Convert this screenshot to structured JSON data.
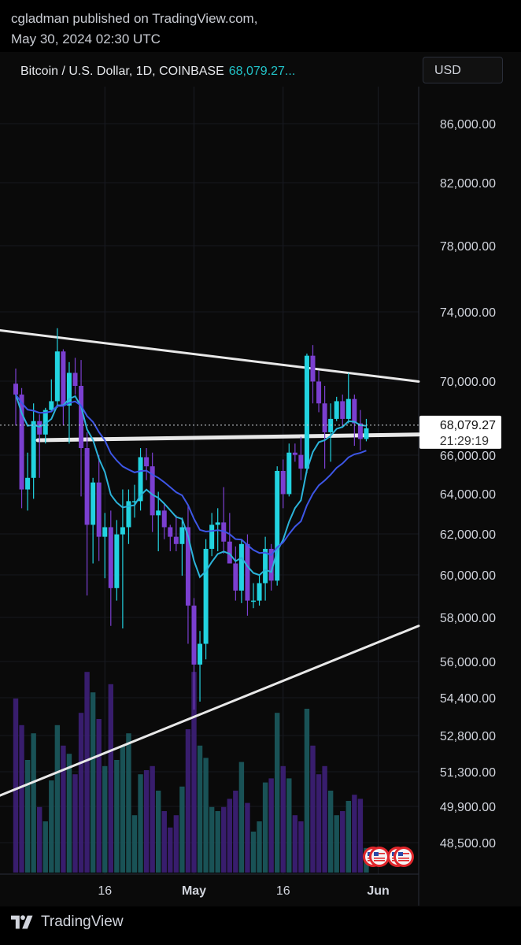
{
  "header": {
    "line1": "cgladman published on TradingView.com,",
    "line2": "May 30, 2024 02:30 UTC"
  },
  "symbol": {
    "title": "Bitcoin / U.S. Dollar, 1D, COINBASE",
    "price": "68,079.27..."
  },
  "currency_button": "USD",
  "footer": {
    "brand": "TradingView"
  },
  "colors": {
    "bull": "#22d3e0",
    "bear": "#7b3fd0",
    "ema_fast": "#2bb3d9",
    "ema_slow": "#3d56e6",
    "trendline": "#e8e8e8",
    "price_tag_bg": "#ffffff"
  },
  "chart_data": {
    "type": "candlestick",
    "price_axis": {
      "labels": [
        "86,000.00",
        "82,000.00",
        "78,000.00",
        "74,000.00",
        "70,000.00",
        "66,000.00",
        "64,000.00",
        "62,000.00",
        "60,000.00",
        "58,000.00",
        "56,000.00",
        "54,400.00",
        "52,800.00",
        "51,300.00",
        "49,900.00",
        "48,500.00"
      ],
      "scale": "log"
    },
    "x_axis": {
      "labels": [
        "16",
        "May",
        "16",
        "Jun"
      ]
    },
    "last_price_tag": {
      "price": "68,079.27",
      "countdown": "21:29:19"
    },
    "candles": [
      {
        "date": "2024-04-01",
        "o": 70100,
        "h": 70800,
        "l": 68200,
        "c": 69600
      },
      {
        "date": "2024-04-02",
        "o": 69600,
        "h": 69900,
        "l": 64600,
        "c": 65400
      },
      {
        "date": "2024-04-03",
        "o": 65400,
        "h": 67000,
        "l": 64500,
        "c": 65900
      },
      {
        "date": "2024-04-04",
        "o": 65900,
        "h": 69200,
        "l": 65000,
        "c": 68400
      },
      {
        "date": "2024-04-05",
        "o": 68400,
        "h": 68700,
        "l": 65900,
        "c": 67800
      },
      {
        "date": "2024-04-06",
        "o": 67800,
        "h": 69000,
        "l": 67400,
        "c": 68900
      },
      {
        "date": "2024-04-07",
        "o": 68900,
        "h": 70300,
        "l": 68800,
        "c": 69300
      },
      {
        "date": "2024-04-08",
        "o": 69300,
        "h": 72700,
        "l": 69000,
        "c": 71600
      },
      {
        "date": "2024-04-09",
        "o": 71600,
        "h": 71700,
        "l": 68200,
        "c": 69100
      },
      {
        "date": "2024-04-10",
        "o": 69100,
        "h": 71100,
        "l": 67400,
        "c": 70600
      },
      {
        "date": "2024-04-11",
        "o": 70600,
        "h": 71300,
        "l": 69600,
        "c": 70000
      },
      {
        "date": "2024-04-12",
        "o": 70000,
        "h": 71200,
        "l": 65100,
        "c": 67200
      },
      {
        "date": "2024-04-13",
        "o": 67200,
        "h": 67900,
        "l": 61000,
        "c": 63900
      },
      {
        "date": "2024-04-14",
        "o": 63900,
        "h": 65900,
        "l": 62300,
        "c": 65700
      },
      {
        "date": "2024-04-15",
        "o": 65700,
        "h": 66900,
        "l": 62400,
        "c": 63400
      },
      {
        "date": "2024-04-16",
        "o": 63400,
        "h": 64400,
        "l": 61700,
        "c": 63800
      },
      {
        "date": "2024-04-17",
        "o": 63800,
        "h": 64500,
        "l": 59800,
        "c": 61300
      },
      {
        "date": "2024-04-18",
        "o": 61300,
        "h": 64100,
        "l": 60800,
        "c": 63500
      },
      {
        "date": "2024-04-19",
        "o": 63500,
        "h": 65400,
        "l": 59700,
        "c": 63800
      },
      {
        "date": "2024-04-20",
        "o": 63800,
        "h": 65400,
        "l": 63100,
        "c": 64900
      },
      {
        "date": "2024-04-21",
        "o": 64900,
        "h": 65600,
        "l": 64200,
        "c": 64900
      },
      {
        "date": "2024-04-22",
        "o": 64900,
        "h": 67200,
        "l": 64500,
        "c": 66800
      },
      {
        "date": "2024-04-23",
        "o": 66800,
        "h": 67200,
        "l": 65800,
        "c": 66400
      },
      {
        "date": "2024-04-24",
        "o": 66400,
        "h": 67000,
        "l": 63600,
        "c": 64300
      },
      {
        "date": "2024-04-25",
        "o": 64300,
        "h": 65300,
        "l": 62800,
        "c": 64500
      },
      {
        "date": "2024-04-26",
        "o": 64500,
        "h": 64800,
        "l": 63300,
        "c": 63800
      },
      {
        "date": "2024-04-27",
        "o": 63800,
        "h": 63900,
        "l": 62800,
        "c": 63400
      },
      {
        "date": "2024-04-28",
        "o": 63400,
        "h": 64300,
        "l": 62800,
        "c": 63100
      },
      {
        "date": "2024-04-29",
        "o": 63100,
        "h": 64200,
        "l": 61800,
        "c": 63800
      },
      {
        "date": "2024-04-30",
        "o": 63800,
        "h": 64700,
        "l": 59100,
        "c": 60600
      },
      {
        "date": "2024-05-01",
        "o": 60600,
        "h": 60900,
        "l": 56600,
        "c": 58300
      },
      {
        "date": "2024-05-02",
        "o": 58300,
        "h": 59600,
        "l": 56900,
        "c": 59100
      },
      {
        "date": "2024-05-03",
        "o": 59100,
        "h": 63300,
        "l": 58500,
        "c": 62900
      },
      {
        "date": "2024-05-04",
        "o": 62900,
        "h": 64400,
        "l": 62600,
        "c": 63900
      },
      {
        "date": "2024-05-05",
        "o": 63900,
        "h": 64600,
        "l": 62800,
        "c": 64000
      },
      {
        "date": "2024-05-06",
        "o": 64000,
        "h": 65500,
        "l": 62700,
        "c": 63200
      },
      {
        "date": "2024-05-07",
        "o": 63200,
        "h": 64400,
        "l": 62300,
        "c": 62300
      },
      {
        "date": "2024-05-08",
        "o": 62300,
        "h": 63000,
        "l": 60800,
        "c": 61200
      },
      {
        "date": "2024-05-09",
        "o": 61200,
        "h": 63300,
        "l": 60700,
        "c": 63100
      },
      {
        "date": "2024-05-10",
        "o": 63100,
        "h": 63500,
        "l": 60200,
        "c": 60800
      },
      {
        "date": "2024-05-11",
        "o": 60800,
        "h": 61500,
        "l": 60500,
        "c": 60800
      },
      {
        "date": "2024-05-12",
        "o": 60800,
        "h": 61800,
        "l": 60600,
        "c": 61500
      },
      {
        "date": "2024-05-13",
        "o": 61500,
        "h": 63400,
        "l": 60800,
        "c": 62900
      },
      {
        "date": "2024-05-14",
        "o": 62900,
        "h": 63100,
        "l": 61200,
        "c": 61600
      },
      {
        "date": "2024-05-15",
        "o": 61600,
        "h": 66400,
        "l": 61400,
        "c": 66200
      },
      {
        "date": "2024-05-16",
        "o": 66200,
        "h": 66700,
        "l": 64600,
        "c": 65200
      },
      {
        "date": "2024-05-17",
        "o": 65200,
        "h": 67400,
        "l": 65100,
        "c": 67000
      },
      {
        "date": "2024-05-18",
        "o": 67000,
        "h": 67400,
        "l": 66600,
        "c": 66900
      },
      {
        "date": "2024-05-19",
        "o": 66900,
        "h": 67700,
        "l": 65800,
        "c": 66300
      },
      {
        "date": "2024-05-20",
        "o": 66300,
        "h": 71500,
        "l": 66100,
        "c": 71400
      },
      {
        "date": "2024-05-21",
        "o": 71400,
        "h": 71900,
        "l": 69200,
        "c": 70200
      },
      {
        "date": "2024-05-22",
        "o": 70200,
        "h": 70700,
        "l": 68800,
        "c": 69200
      },
      {
        "date": "2024-05-23",
        "o": 69200,
        "h": 70000,
        "l": 66300,
        "c": 67900
      },
      {
        "date": "2024-05-24",
        "o": 67900,
        "h": 69200,
        "l": 66600,
        "c": 68500
      },
      {
        "date": "2024-05-25",
        "o": 68500,
        "h": 69500,
        "l": 68400,
        "c": 69300
      },
      {
        "date": "2024-05-26",
        "o": 69300,
        "h": 69600,
        "l": 68100,
        "c": 68500
      },
      {
        "date": "2024-05-27",
        "o": 68500,
        "h": 70600,
        "l": 68300,
        "c": 69400
      },
      {
        "date": "2024-05-28",
        "o": 69400,
        "h": 69600,
        "l": 67300,
        "c": 68300
      },
      {
        "date": "2024-05-29",
        "o": 68300,
        "h": 68900,
        "l": 67100,
        "c": 67600
      },
      {
        "date": "2024-05-30",
        "o": 67600,
        "h": 68500,
        "l": 67500,
        "c": 68079
      }
    ],
    "volume_relative": [
      0.85,
      0.72,
      0.55,
      0.68,
      0.32,
      0.25,
      0.45,
      0.72,
      0.62,
      0.58,
      0.48,
      0.78,
      0.98,
      0.88,
      0.75,
      0.52,
      0.92,
      0.55,
      0.62,
      0.68,
      0.28,
      0.48,
      0.5,
      0.52,
      0.4,
      0.3,
      0.22,
      0.28,
      0.42,
      0.7,
      0.98,
      0.62,
      0.56,
      0.32,
      0.3,
      0.32,
      0.36,
      0.4,
      0.54,
      0.34,
      0.2,
      0.25,
      0.44,
      0.46,
      0.78,
      0.52,
      0.46,
      0.28,
      0.25,
      0.8,
      0.62,
      0.48,
      0.52,
      0.4,
      0.28,
      0.3,
      0.35,
      0.38,
      0.36,
      0.12
    ],
    "trendlines": [
      {
        "name": "upper",
        "from": {
          "date": "2024-03-31",
          "price": 72600
        },
        "to": {
          "date": "2024-06-04",
          "price": 70200
        }
      },
      {
        "name": "lower",
        "from": {
          "date": "2024-03-31",
          "price": 53500
        },
        "to": {
          "date": "2024-06-04",
          "price": 59800
        }
      },
      {
        "name": "horizontal",
        "from": {
          "date": "2024-04-03",
          "price": 67550
        },
        "to": {
          "date": "2024-06-04",
          "price": 67800
        }
      }
    ]
  }
}
